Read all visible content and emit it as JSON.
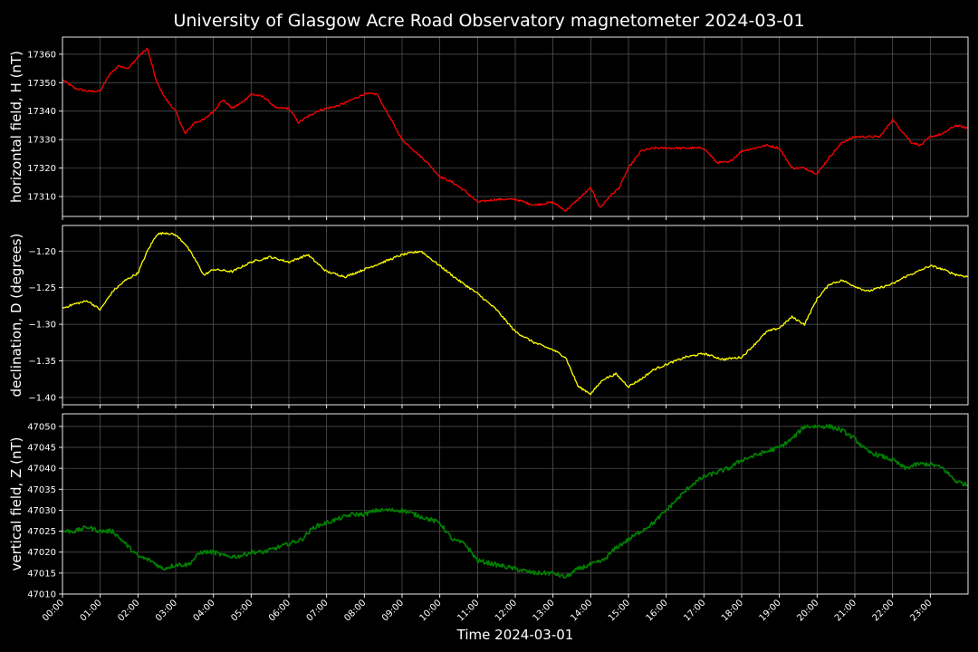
{
  "figure": {
    "title": "University of Glasgow Acre Road Observatory magnetometer 2024-03-01",
    "xlabel": "Time 2024-03-01",
    "background": "#000000",
    "grid_color": "#5a5a5a",
    "axis_color": "#ffffff"
  },
  "chart_data": [
    {
      "type": "line",
      "ylabel": "horizontal field, H (nT)",
      "color": "#ff0000",
      "grid": true,
      "xlim": [
        "00:00",
        "24:00"
      ],
      "ylim": [
        17303,
        17366
      ],
      "yticks": [
        17310,
        17320,
        17330,
        17340,
        17350,
        17360
      ],
      "ytick_labels": [
        "17310",
        "17320",
        "17330",
        "17340",
        "17350",
        "17360"
      ],
      "series": [
        {
          "x": [
            "00:00",
            "00:20",
            "00:40",
            "01:00",
            "01:15",
            "01:30",
            "01:45",
            "02:00",
            "02:15",
            "02:30",
            "02:45",
            "03:00",
            "03:15",
            "03:30",
            "03:45",
            "04:00",
            "04:15",
            "04:30",
            "04:45",
            "05:00",
            "05:20",
            "05:40",
            "06:00",
            "06:15",
            "06:30",
            "06:45",
            "07:00",
            "07:20",
            "07:40",
            "08:00",
            "08:20",
            "08:40",
            "09:00",
            "09:20",
            "09:40",
            "10:00",
            "10:20",
            "10:40",
            "11:00",
            "11:30",
            "12:00",
            "12:30",
            "13:00",
            "13:20",
            "13:40",
            "14:00",
            "14:15",
            "14:30",
            "14:45",
            "15:00",
            "15:20",
            "15:40",
            "16:00",
            "16:20",
            "16:40",
            "17:00",
            "17:20",
            "17:40",
            "18:00",
            "18:20",
            "18:40",
            "19:00",
            "19:20",
            "19:40",
            "20:00",
            "20:20",
            "20:40",
            "21:00",
            "21:20",
            "21:40",
            "22:00",
            "22:15",
            "22:30",
            "22:45",
            "23:00",
            "23:20",
            "23:40",
            "24:00"
          ],
          "y": [
            17351,
            17348,
            17347,
            17347,
            17353,
            17356,
            17355,
            17359,
            17362,
            17350,
            17344,
            17340,
            17332,
            17336,
            17337,
            17340,
            17344,
            17341,
            17343,
            17346,
            17345,
            17341,
            17341,
            17336,
            17338,
            17340,
            17341,
            17342,
            17344,
            17346,
            17346,
            17338,
            17330,
            17326,
            17322,
            17317,
            17315,
            17312,
            17308,
            17309,
            17309,
            17307,
            17308,
            17305,
            17309,
            17313,
            17306,
            17310,
            17313,
            17320,
            17326,
            17327,
            17327,
            17327,
            17327,
            17327,
            17322,
            17322,
            17326,
            17327,
            17328,
            17327,
            17320,
            17320,
            17318,
            17324,
            17329,
            17331,
            17331,
            17331,
            17337,
            17333,
            17329,
            17328,
            17331,
            17332,
            17335,
            17334
          ]
        }
      ]
    },
    {
      "type": "line",
      "ylabel": "declination, D (degrees)",
      "color": "#ffff00",
      "grid": true,
      "xlim": [
        "00:00",
        "24:00"
      ],
      "ylim": [
        -1.41,
        -1.165
      ],
      "yticks": [
        -1.4,
        -1.35,
        -1.3,
        -1.25,
        -1.2
      ],
      "ytick_labels": [
        "−1.40",
        "−1.35",
        "−1.30",
        "−1.25",
        "−1.20"
      ],
      "series": [
        {
          "x": [
            "00:00",
            "00:20",
            "00:40",
            "01:00",
            "01:20",
            "01:40",
            "02:00",
            "02:15",
            "02:30",
            "02:45",
            "03:00",
            "03:15",
            "03:30",
            "03:45",
            "04:00",
            "04:30",
            "05:00",
            "05:30",
            "06:00",
            "06:30",
            "07:00",
            "07:30",
            "08:00",
            "08:30",
            "09:00",
            "09:30",
            "10:00",
            "10:30",
            "11:00",
            "11:30",
            "12:00",
            "12:30",
            "13:00",
            "13:20",
            "13:40",
            "14:00",
            "14:20",
            "14:40",
            "15:00",
            "15:20",
            "15:40",
            "16:00",
            "16:30",
            "17:00",
            "17:30",
            "18:00",
            "18:20",
            "18:40",
            "19:00",
            "19:20",
            "19:40",
            "20:00",
            "20:20",
            "20:40",
            "21:00",
            "21:20",
            "21:40",
            "22:00",
            "22:20",
            "22:40",
            "23:00",
            "23:20",
            "23:40",
            "24:00"
          ],
          "y": [
            -1.278,
            -1.272,
            -1.268,
            -1.28,
            -1.255,
            -1.24,
            -1.23,
            -1.2,
            -1.177,
            -1.175,
            -1.178,
            -1.19,
            -1.21,
            -1.233,
            -1.225,
            -1.228,
            -1.215,
            -1.208,
            -1.215,
            -1.205,
            -1.228,
            -1.235,
            -1.225,
            -1.215,
            -1.205,
            -1.2,
            -1.22,
            -1.24,
            -1.258,
            -1.28,
            -1.31,
            -1.325,
            -1.335,
            -1.345,
            -1.385,
            -1.395,
            -1.375,
            -1.368,
            -1.385,
            -1.375,
            -1.362,
            -1.355,
            -1.345,
            -1.34,
            -1.348,
            -1.345,
            -1.328,
            -1.31,
            -1.305,
            -1.29,
            -1.3,
            -1.265,
            -1.245,
            -1.24,
            -1.248,
            -1.255,
            -1.25,
            -1.245,
            -1.235,
            -1.228,
            -1.22,
            -1.225,
            -1.232,
            -1.235
          ]
        }
      ]
    },
    {
      "type": "line",
      "ylabel": "vertical field, Z (nT)",
      "color": "#008000",
      "grid": true,
      "xlim": [
        "00:00",
        "24:00"
      ],
      "ylim": [
        47010,
        47053
      ],
      "yticks": [
        47010,
        47015,
        47020,
        47025,
        47030,
        47035,
        47040,
        47045,
        47050
      ],
      "ytick_labels": [
        "47010",
        "47015",
        "47020",
        "47025",
        "47030",
        "47035",
        "47040",
        "47045",
        "47050"
      ],
      "xticks": [
        "00:00",
        "01:00",
        "02:00",
        "03:00",
        "04:00",
        "05:00",
        "06:00",
        "07:00",
        "08:00",
        "09:00",
        "10:00",
        "11:00",
        "12:00",
        "13:00",
        "14:00",
        "15:00",
        "16:00",
        "17:00",
        "18:00",
        "19:00",
        "20:00",
        "21:00",
        "22:00",
        "23:00"
      ],
      "series": [
        {
          "x": [
            "00:00",
            "00:20",
            "00:40",
            "01:00",
            "01:20",
            "01:40",
            "02:00",
            "02:20",
            "02:40",
            "03:00",
            "03:20",
            "03:40",
            "04:00",
            "04:20",
            "04:40",
            "05:00",
            "05:20",
            "05:40",
            "06:00",
            "06:20",
            "06:40",
            "07:00",
            "07:20",
            "07:40",
            "08:00",
            "08:20",
            "08:40",
            "09:00",
            "09:20",
            "09:40",
            "10:00",
            "10:20",
            "10:40",
            "11:00",
            "11:30",
            "12:00",
            "12:30",
            "13:00",
            "13:20",
            "13:40",
            "14:00",
            "14:20",
            "14:40",
            "15:00",
            "15:20",
            "15:40",
            "16:00",
            "16:20",
            "16:40",
            "17:00",
            "17:20",
            "17:40",
            "18:00",
            "18:20",
            "18:40",
            "19:00",
            "19:20",
            "19:40",
            "20:00",
            "20:20",
            "20:40",
            "21:00",
            "21:20",
            "21:40",
            "22:00",
            "22:20",
            "22:40",
            "23:00",
            "23:20",
            "23:40",
            "24:00"
          ],
          "y": [
            47025,
            47025,
            47026,
            47025,
            47025,
            47022,
            47019,
            47018,
            47016,
            47017,
            47017,
            47020,
            47020,
            47019,
            47019,
            47020,
            47020,
            47021,
            47022,
            47023,
            47026,
            47027,
            47028,
            47029,
            47029,
            47030,
            47030,
            47030,
            47029,
            47028,
            47027,
            47023,
            47022,
            47018,
            47017,
            47016,
            47015,
            47015,
            47014,
            47016,
            47017,
            47018,
            47021,
            47023,
            47025,
            47027,
            47030,
            47033,
            47036,
            47038,
            47039,
            47040,
            47042,
            47043,
            47044,
            47045,
            47047,
            47050,
            47050,
            47050,
            47049,
            47047,
            47044,
            47043,
            47042,
            47040,
            47041,
            47041,
            47040,
            47037,
            47036
          ]
        }
      ]
    }
  ]
}
